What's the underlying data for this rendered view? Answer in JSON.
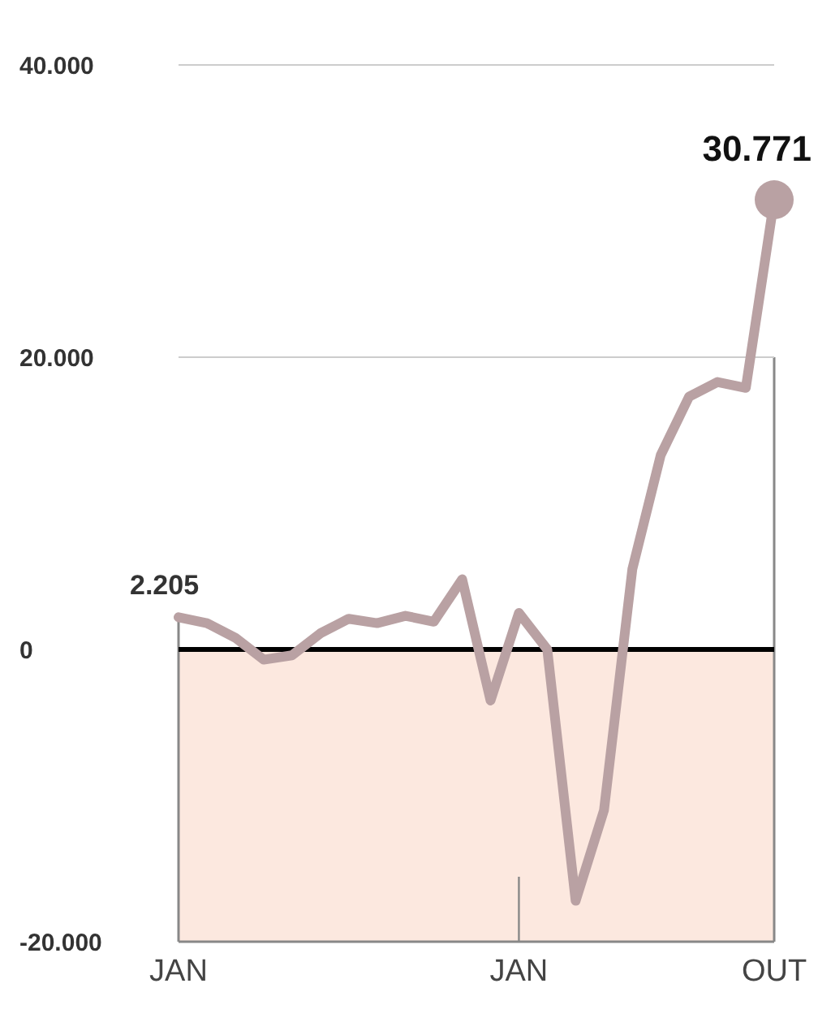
{
  "chart_data": {
    "type": "line",
    "categories": [
      "JAN",
      null,
      null,
      null,
      null,
      null,
      null,
      null,
      null,
      null,
      null,
      null,
      "JAN",
      null,
      null,
      null,
      null,
      null,
      null,
      null,
      null,
      "OUT"
    ],
    "series": [
      {
        "color": "#b9a1a3",
        "values": [
          2205,
          1800,
          800,
          -700,
          -400,
          1100,
          2100,
          1800,
          2300,
          1900,
          4800,
          -3500,
          2500,
          0,
          -17200,
          -11000,
          5500,
          13300,
          17300,
          18300,
          17900,
          30771
        ],
        "value_labels": [
          "2.205",
          null,
          null,
          null,
          null,
          null,
          null,
          null,
          null,
          null,
          null,
          null,
          null,
          null,
          null,
          null,
          null,
          null,
          null,
          null,
          null,
          "30.771"
        ]
      }
    ],
    "ylim": [
      -20000,
      40000
    ],
    "yticks": [
      {
        "value": -20000,
        "label": "-20.000"
      },
      {
        "value": 0,
        "label": "0"
      },
      {
        "value": 20000,
        "label": "20.000"
      },
      {
        "value": 40000,
        "label": "40.000"
      }
    ],
    "grid": false,
    "bands": [
      {
        "axis": "y",
        "from": -20000,
        "to": 0,
        "color": "#fce8df"
      }
    ],
    "ref_lines": [
      {
        "axis": "y",
        "value": 0,
        "color": "#000000"
      },
      {
        "axis": "y",
        "value": 20000,
        "color": "#cccccc"
      },
      {
        "axis": "y",
        "value": 40000,
        "color": "#cccccc"
      }
    ]
  }
}
